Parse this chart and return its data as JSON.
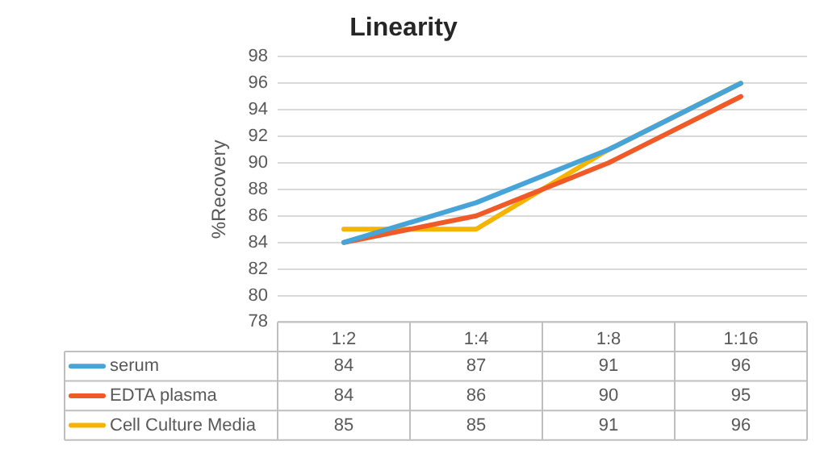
{
  "chart_data": {
    "type": "line",
    "title": "Linearity",
    "ylabel": "%Recovery",
    "categories": [
      "1:2",
      "1:4",
      "1:8",
      "1:16"
    ],
    "series": [
      {
        "name": "serum",
        "color": "#46a4d8",
        "values": [
          84,
          87,
          91,
          96
        ]
      },
      {
        "name": "EDTA plasma",
        "color": "#ef5a28",
        "values": [
          84,
          86,
          90,
          95
        ]
      },
      {
        "name": "Cell Culture Media",
        "color": "#f5b400",
        "values": [
          85,
          85,
          91,
          96
        ]
      }
    ],
    "ylim": [
      78,
      98
    ],
    "yticks": [
      78,
      80,
      82,
      84,
      86,
      88,
      90,
      92,
      94,
      96,
      98
    ],
    "grid": "y",
    "legend": "bottom",
    "data_labels": true,
    "marker": "none",
    "line_style": "solid"
  }
}
